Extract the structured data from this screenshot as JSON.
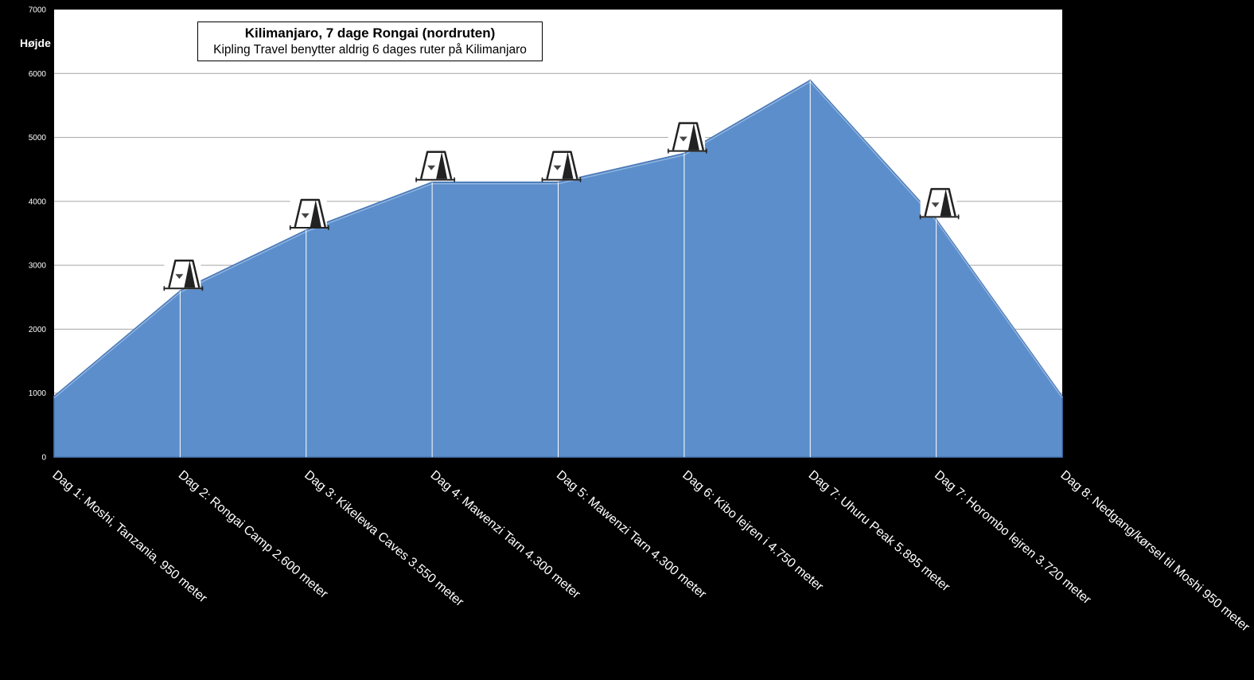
{
  "chart_data": {
    "type": "area",
    "title": "Kilimanjaro, 7 dage Rongai (nordruten)",
    "subtitle": "Kipling Travel benytter aldrig 6 dages ruter på Kilimanjaro",
    "ylabel": "Højde",
    "xlabel": "",
    "ylim": [
      0,
      7000
    ],
    "yticks": [
      0,
      1000,
      2000,
      3000,
      4000,
      5000,
      6000,
      7000
    ],
    "grid": true,
    "categories": [
      "Dag 1: Moshi, Tanzania, 950 meter",
      "Dag 2: Rongai Camp 2.600 meter",
      "Dag 3: Kikelewa Caves 3.550 meter",
      "Dag 4: Mawenzi Tarn 4.300 meter",
      "Dag 5: Mawenzi Tarn 4.300 meter",
      "Dag 6: Kibo lejren i 4.750 meter",
      "Dag 7: Uhuru Peak 5.895 meter",
      "Dag 7: Horombo lejren 3.720 meter",
      "Dag 8: Nedgang/kørsel til Moshi  950 meter"
    ],
    "values": [
      950,
      2600,
      3550,
      4300,
      4300,
      4750,
      5895,
      3720,
      950
    ],
    "camp_markers": [
      false,
      true,
      true,
      true,
      true,
      true,
      false,
      true,
      false
    ],
    "colors": {
      "area": "#5b8ecb",
      "area_edge": "#4a78b6",
      "plot_background": "#ffffff",
      "page_background": "#000000"
    },
    "icons": {
      "camp": "tent-icon"
    }
  }
}
